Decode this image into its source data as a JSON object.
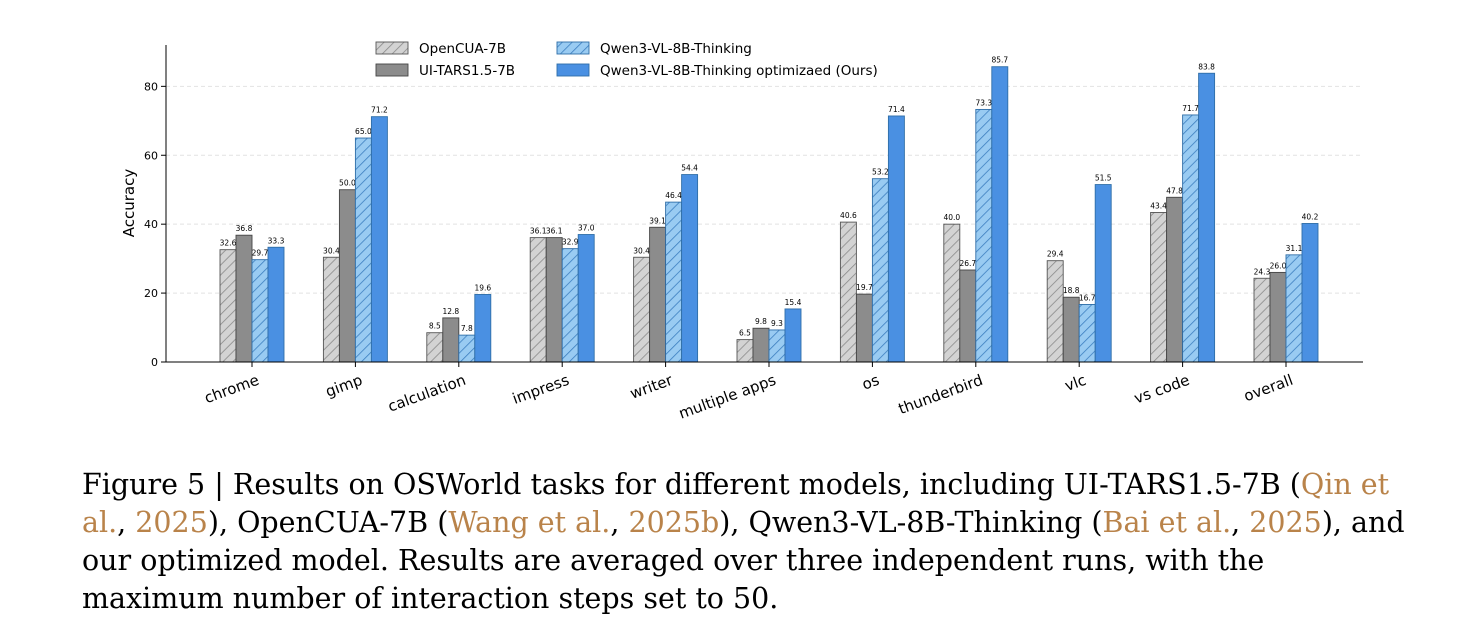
{
  "chart_data": {
    "type": "bar",
    "title": "",
    "xlabel": "",
    "ylabel": "Accuracy",
    "ylim": [
      0,
      92
    ],
    "yticks": [
      0,
      20,
      40,
      60,
      80
    ],
    "grid": "horizontal dashed",
    "legend_placement": "top-left, two columns",
    "categories": [
      "chrome",
      "gimp",
      "calculation",
      "impress",
      "writer",
      "multiple apps",
      "os",
      "thunderbird",
      "vlc",
      "vs code",
      "overall"
    ],
    "series": [
      {
        "name": "OpenCUA-7B",
        "fill": "#d3d3d3",
        "hatch": true,
        "stroke": "#555555",
        "labels": [
          "32.6",
          "30.4",
          "8.5",
          "36.1",
          "30.4",
          "6.5",
          "40.6",
          "40.0",
          "29.4",
          "43.4",
          "24.3"
        ],
        "values": [
          32.6,
          30.4,
          8.5,
          36.1,
          30.4,
          6.5,
          40.6,
          40.0,
          29.4,
          43.4,
          24.3
        ]
      },
      {
        "name": "UI-TARS1.5-7B",
        "fill": "#8c8c8c",
        "hatch": false,
        "stroke": "#444444",
        "labels": [
          "36.8",
          "50.0",
          "12.8",
          "36.1",
          "39.1",
          "9.8",
          "19.7",
          "26.7",
          "18.8",
          "47.8",
          "26.0"
        ],
        "values": [
          36.8,
          50.0,
          12.8,
          36.1,
          39.1,
          9.8,
          19.7,
          26.7,
          18.8,
          47.8,
          26.0
        ]
      },
      {
        "name": "Qwen3-VL-8B-Thinking",
        "fill": "#99cbf2",
        "hatch": true,
        "stroke": "#2f6ea8",
        "labels": [
          "29.7",
          "65.0",
          "7.8",
          "32.9",
          "46.4",
          "9.3",
          "53.2",
          "73.3",
          "16.7",
          "71.7",
          "31.1"
        ],
        "values": [
          29.7,
          65.0,
          7.8,
          32.9,
          46.4,
          9.3,
          53.2,
          73.3,
          16.7,
          71.7,
          31.1
        ]
      },
      {
        "name": "Qwen3-VL-8B-Thinking optimizaed (Ours)",
        "fill": "#4a90e2",
        "hatch": false,
        "stroke": "#2f6ea8",
        "labels": [
          "33.3",
          "71.2",
          "19.6",
          "37.0",
          "54.4",
          "15.4",
          "71.4",
          "85.7",
          "51.5",
          "83.8",
          "40.2"
        ],
        "values": [
          33.3,
          71.2,
          19.6,
          37.0,
          54.4,
          15.4,
          71.4,
          85.7,
          51.5,
          83.8,
          40.2
        ]
      }
    ]
  },
  "caption": {
    "p1": "Figure 5 | Results on OSWorld tasks for different models, including UI-TARS1.5-7B (",
    "c1": "Qin et al.",
    "p2": ", ",
    "c2": "2025",
    "p3": "), OpenCUA-7B (",
    "c3": "Wang et al.",
    "p4": ", ",
    "c4": "2025b",
    "p5": "), Qwen3-VL-8B-Thinking (",
    "c5": "Bai et al.",
    "p6": ", ",
    "c6": "2025",
    "p7": "), and our optimized model. Results are averaged over three independent runs, with the maximum number of interaction steps set to 50."
  }
}
